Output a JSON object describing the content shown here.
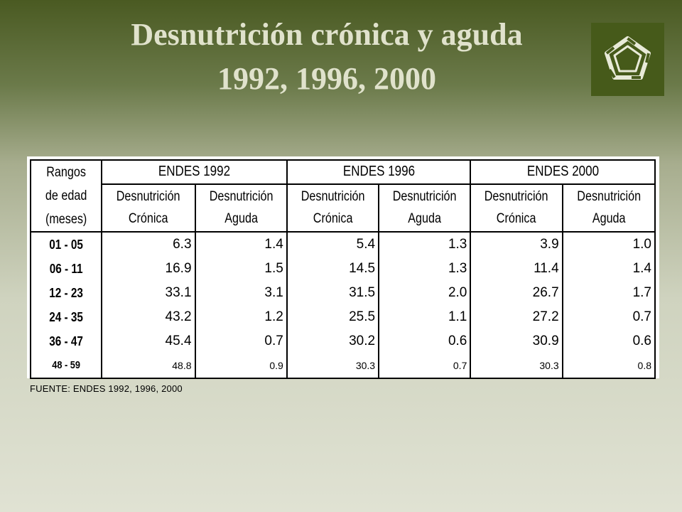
{
  "title": {
    "line1": "Desnutrición crónica y aguda",
    "line2": "1992, 1996, 2000"
  },
  "logo": {
    "icon": "pentagon-logo-icon",
    "color": "#465a1a"
  },
  "table": {
    "range_header": [
      "Rangos",
      "de edad",
      "(meses)"
    ],
    "groups": [
      "ENDES 1992",
      "ENDES 1996",
      "ENDES 2000"
    ],
    "sub_headers": [
      [
        "Desnutrición",
        "Crónica"
      ],
      [
        "Desnutrición",
        "Aguda"
      ]
    ],
    "ranges": [
      "01 - 05",
      "06 - 11",
      "12 - 23",
      "24 - 35",
      "36 - 47",
      "48 - 59"
    ],
    "columns": [
      [
        "6.3",
        "16.9",
        "33.1",
        "43.2",
        "45.4",
        "48.8"
      ],
      [
        "1.4",
        "1.5",
        "3.1",
        "1.2",
        "0.7",
        "0.9"
      ],
      [
        "5.4",
        "14.5",
        "31.5",
        "25.5",
        "30.2",
        "30.3"
      ],
      [
        "1.3",
        "1.3",
        "2.0",
        "1.1",
        "0.6",
        "0.7"
      ],
      [
        "3.9",
        "11.4",
        "26.7",
        "27.2",
        "30.9",
        "30.3"
      ],
      [
        "1.0",
        "1.4",
        "1.7",
        "0.7",
        "0.6",
        "0.8"
      ]
    ]
  },
  "source": "FUENTE: ENDES 1992, 1996, 2000"
}
